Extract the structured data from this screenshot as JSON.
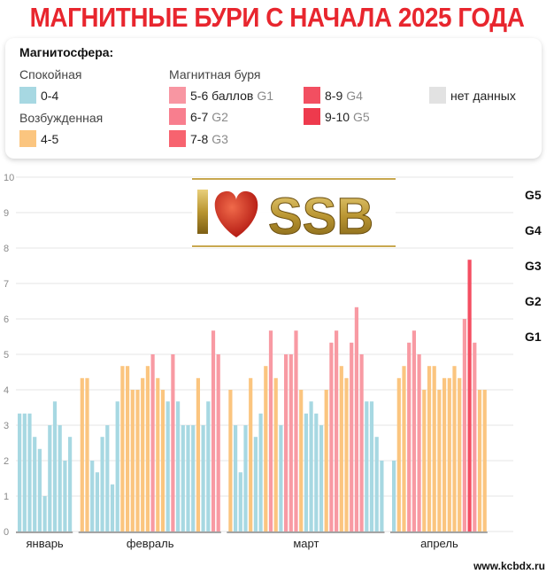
{
  "title": "МАГНИТНЫЕ БУРИ С НАЧАЛА 2025 ГОДА",
  "legend": {
    "heading": "Магнитосфера:",
    "calm_label": "Спокойная",
    "calm_range": "0-4",
    "excited_label": "Возбужденная",
    "excited_range": "4-5",
    "storm_label": "Магнитная буря",
    "storm_items": [
      {
        "range": "5-6 баллов",
        "g": "G1",
        "color": "#f896a2"
      },
      {
        "range": "6-7",
        "g": "G2",
        "color": "#f87e8e"
      },
      {
        "range": "7-8",
        "g": "G3",
        "color": "#f7636f"
      },
      {
        "range": "8-9",
        "g": "G4",
        "color": "#f24f61"
      },
      {
        "range": "9-10",
        "g": "G5",
        "color": "#ee3a4d"
      }
    ],
    "no_data": "нет данных",
    "no_data_color": "#e2e2e2"
  },
  "colors": {
    "calm": "#a7d8e2",
    "excited": "#fbc57f",
    "storm": "#f89aa3",
    "storm_strong": "#f44e62"
  },
  "logo_text": "SSB",
  "footer": "www.kcbdx.ru",
  "chart_data": {
    "type": "bar",
    "ylim": [
      0,
      10
    ],
    "yticks": [
      "0",
      "1",
      "2",
      "3",
      "4",
      "5",
      "6",
      "7",
      "8",
      "9",
      "10"
    ],
    "g_levels": [
      {
        "label": "G1",
        "value": 5.5
      },
      {
        "label": "G2",
        "value": 6.5
      },
      {
        "label": "G3",
        "value": 7.5
      },
      {
        "label": "G4",
        "value": 8.5
      },
      {
        "label": "G5",
        "value": 9.5
      }
    ],
    "months": [
      {
        "name": "январь",
        "values": [
          3.33,
          3.33,
          3.33,
          2.67,
          2.33,
          1.0,
          3.0,
          3.67,
          3.0,
          2.0,
          2.67
        ]
      },
      {
        "name": "февраль",
        "values": [
          4.33,
          4.33,
          2.0,
          1.67,
          2.67,
          3.0,
          1.33,
          3.67,
          4.67,
          4.67,
          4.0,
          4.0,
          4.33,
          4.67,
          5.0,
          4.33,
          4.0,
          3.67,
          5.0,
          3.67,
          3.0,
          3.0,
          3.0,
          4.33,
          3.0,
          3.67,
          5.67,
          5.0
        ]
      },
      {
        "name": "март",
        "values": [
          4.0,
          3.0,
          1.67,
          3.0,
          4.33,
          2.67,
          3.33,
          4.67,
          5.67,
          4.33,
          3.0,
          5.0,
          5.0,
          5.67,
          4.0,
          3.33,
          3.67,
          3.33,
          3.0,
          4.0,
          5.33,
          5.67,
          4.67,
          4.33,
          5.33,
          6.33,
          5.0,
          3.67,
          3.67,
          2.67,
          2.0
        ]
      },
      {
        "name": "апрель",
        "values": [
          2.0,
          4.33,
          4.67,
          5.33,
          5.67,
          5.0,
          4.0,
          4.67,
          4.67,
          4.0,
          4.33,
          4.33,
          4.67,
          4.33,
          6.0,
          7.67,
          5.33,
          4.0,
          4.0
        ]
      }
    ]
  }
}
